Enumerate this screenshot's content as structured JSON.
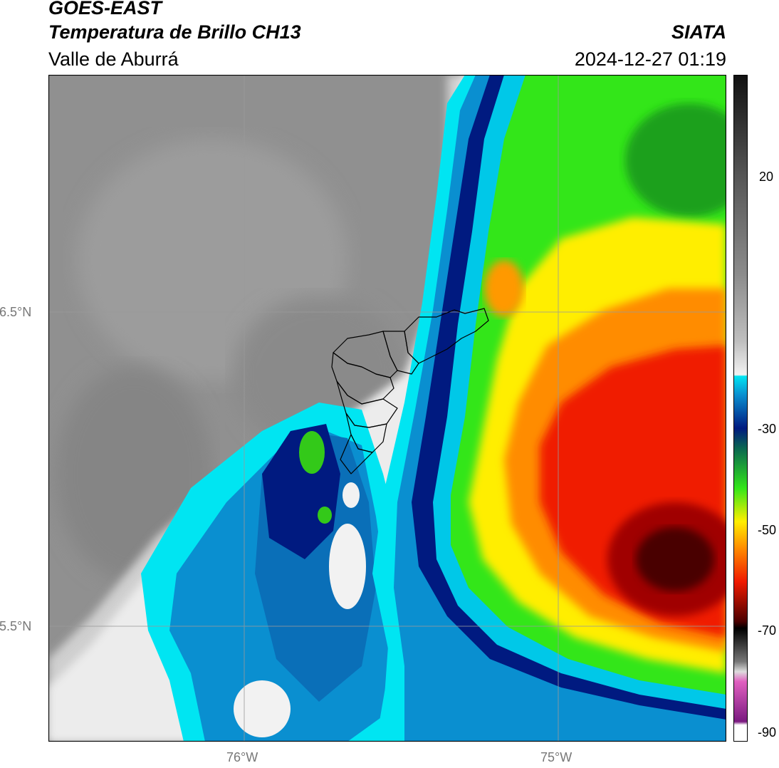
{
  "header": {
    "satellite": "GOES-EAST",
    "product": "Temperatura de Brillo CH13",
    "region": "Valle de Aburrá",
    "agency": "SIATA",
    "datetime": "2024-12-27 01:19"
  },
  "map": {
    "lat_labels": [
      "6.5°N",
      "5.5°N"
    ],
    "lon_labels": [
      "76°W",
      "75°W"
    ],
    "gridlines": true,
    "colors": {
      "clear_sky_gray": "#8c8c8c",
      "warm_white": "#f2f2f2",
      "cyan": "#00e5f2",
      "blue": "#0a6fb8",
      "navy": "#001a80",
      "green": "#33e619",
      "yellow": "#ffee00",
      "orange": "#ff8c00",
      "red": "#f01a00",
      "dark_red": "#6a0000"
    }
  },
  "colorbar": {
    "ticks": [
      "20",
      "-30",
      "-50",
      "-70",
      "-90"
    ]
  }
}
